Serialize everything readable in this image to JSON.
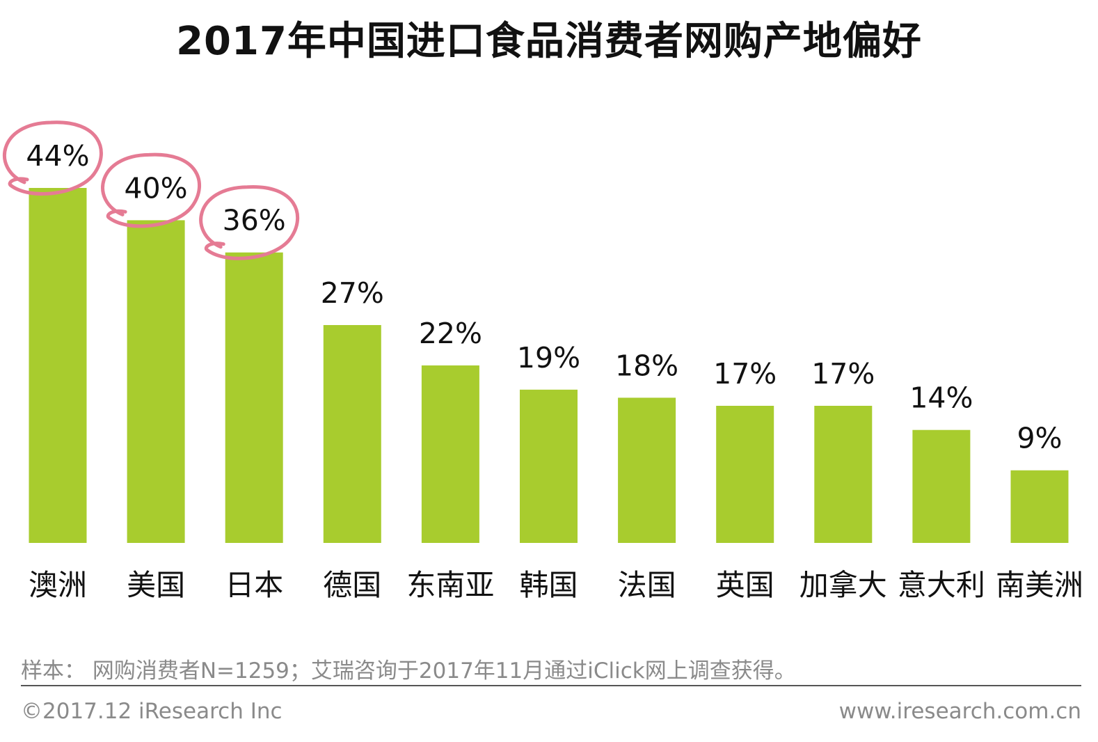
{
  "chart_data": {
    "type": "bar",
    "title": "2017年中国进口食品消费者网购产地偏好",
    "categories": [
      "澳洲",
      "美国",
      "日本",
      "德国",
      "东南亚",
      "韩国",
      "法国",
      "英国",
      "加拿大",
      "意大利",
      "南美洲"
    ],
    "values": [
      44,
      40,
      36,
      27,
      22,
      19,
      18,
      17,
      17,
      14,
      9
    ],
    "value_labels": [
      "44%",
      "40%",
      "36%",
      "27%",
      "22%",
      "19%",
      "18%",
      "17%",
      "17%",
      "14%",
      "9%"
    ],
    "highlighted": [
      "澳洲",
      "美国",
      "日本"
    ],
    "ylim": [
      0,
      50
    ],
    "grid": false,
    "colors": {
      "bar": "#a8cc2e",
      "highlight_circle": "#e57b94",
      "text": "#111111"
    }
  },
  "footer": {
    "sample_note": "样本： 网购消费者N=1259；艾瑞咨询于2017年11月通过iClick网上调查获得。",
    "copyright": "©2017.12 iResearch Inc",
    "website": "www.iresearch.com.cn"
  }
}
